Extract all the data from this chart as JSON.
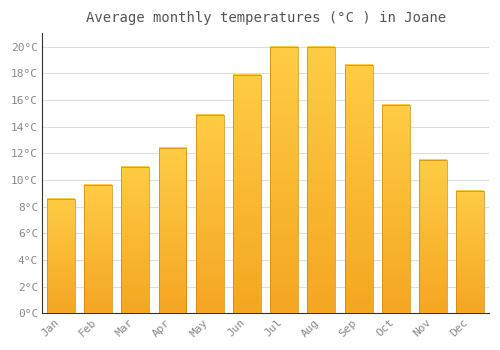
{
  "title": "Average monthly temperatures (°C ) in Joane",
  "months": [
    "Jan",
    "Feb",
    "Mar",
    "Apr",
    "May",
    "Jun",
    "Jul",
    "Aug",
    "Sep",
    "Oct",
    "Nov",
    "Dec"
  ],
  "values": [
    8.6,
    9.6,
    11.0,
    12.4,
    14.9,
    17.9,
    20.0,
    20.0,
    18.6,
    15.6,
    11.5,
    9.2
  ],
  "bar_color_dark": "#F5A623",
  "bar_color_light": "#FFCC44",
  "ylim": [
    0,
    21
  ],
  "yticks": [
    0,
    2,
    4,
    6,
    8,
    10,
    12,
    14,
    16,
    18,
    20
  ],
  "ytick_labels": [
    "0°C",
    "2°C",
    "4°C",
    "6°C",
    "8°C",
    "10°C",
    "12°C",
    "14°C",
    "16°C",
    "18°C",
    "20°C"
  ],
  "background_color": "#ffffff",
  "plot_bg_color": "#ffffff",
  "grid_color": "#dddddd",
  "title_fontsize": 10,
  "tick_fontsize": 8,
  "bar_width": 0.75,
  "title_color": "#555555",
  "tick_color": "#888888",
  "axis_color": "#333333"
}
